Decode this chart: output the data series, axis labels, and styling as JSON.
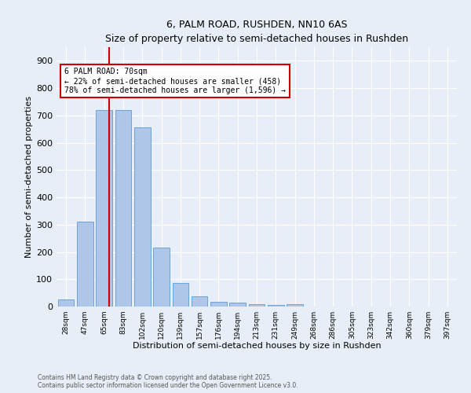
{
  "title": "6, PALM ROAD, RUSHDEN, NN10 6AS",
  "subtitle": "Size of property relative to semi-detached houses in Rushden",
  "xlabel": "Distribution of semi-detached houses by size in Rushden",
  "ylabel": "Number of semi-detached properties",
  "categories": [
    "28sqm",
    "47sqm",
    "65sqm",
    "83sqm",
    "102sqm",
    "120sqm",
    "139sqm",
    "157sqm",
    "176sqm",
    "194sqm",
    "213sqm",
    "231sqm",
    "249sqm",
    "268sqm",
    "286sqm",
    "305sqm",
    "323sqm",
    "342sqm",
    "360sqm",
    "379sqm",
    "397sqm"
  ],
  "values": [
    25,
    310,
    720,
    720,
    655,
    215,
    85,
    38,
    17,
    15,
    10,
    5,
    8,
    0,
    0,
    0,
    0,
    0,
    0,
    0,
    0
  ],
  "bar_color": "#aec6e8",
  "bar_edge_color": "#5b9bd5",
  "vline_index": 2,
  "vline_color": "#cc0000",
  "annotation_line1": "6 PALM ROAD: 70sqm",
  "annotation_line2": "← 22% of semi-detached houses are smaller (458)",
  "annotation_line3": "78% of semi-detached houses are larger (1,596) →",
  "annotation_box_edgecolor": "#cc0000",
  "annotation_box_facecolor": "#ffffff",
  "ylim": [
    0,
    950
  ],
  "yticks": [
    0,
    100,
    200,
    300,
    400,
    500,
    600,
    700,
    800,
    900
  ],
  "background_color": "#e8eef7",
  "grid_color": "#ffffff",
  "footnote_line1": "Contains HM Land Registry data © Crown copyright and database right 2025.",
  "footnote_line2": "Contains public sector information licensed under the Open Government Licence v3.0."
}
